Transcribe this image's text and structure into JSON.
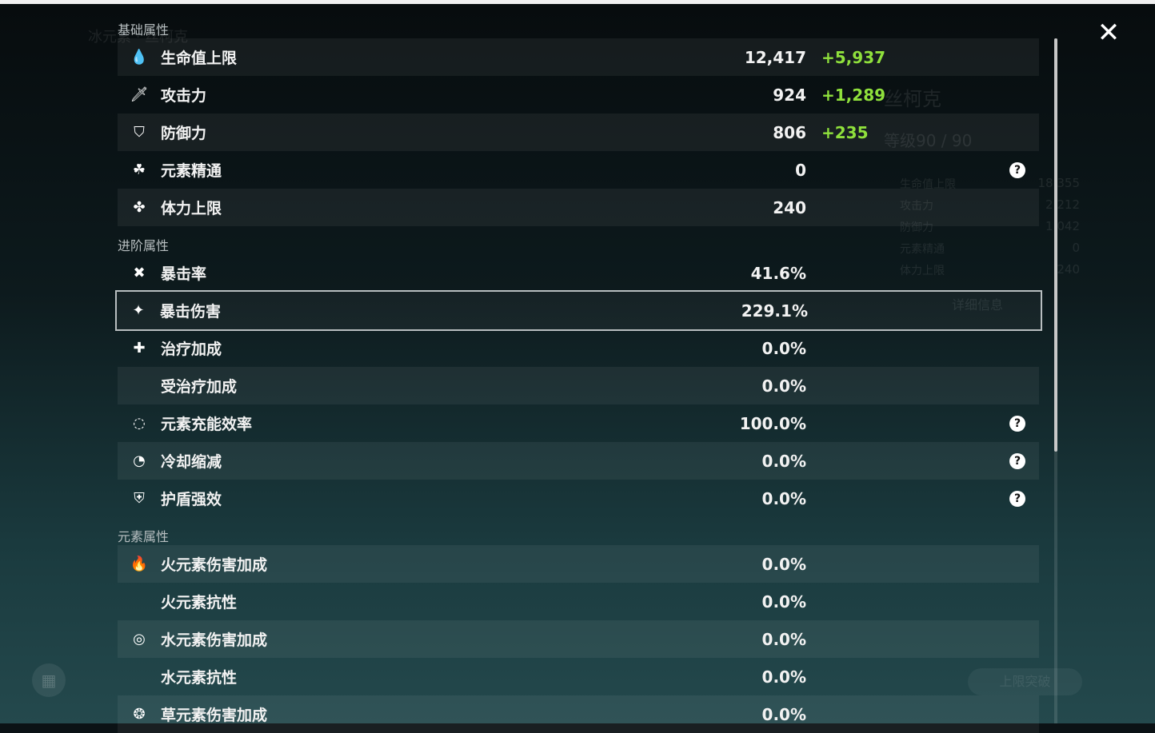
{
  "background": {
    "element_name": "冰元素 · 丝柯克",
    "char_name": "丝柯克",
    "level": "等级90 / 90",
    "detail_button": "详细信息",
    "ascend_button": "上限突破",
    "summary": [
      {
        "label": "生命值上限",
        "value": "18,355"
      },
      {
        "label": "攻击力",
        "value": "2,212"
      },
      {
        "label": "防御力",
        "value": "1,042"
      },
      {
        "label": "元素精通",
        "value": "0"
      },
      {
        "label": "体力上限",
        "value": "240"
      }
    ]
  },
  "close_label": "✕",
  "sections": [
    {
      "title": "基础属性",
      "rows": [
        {
          "icon": "hp-drop-icon",
          "glyph": "💧",
          "label": "生命值上限",
          "value": "12,417",
          "bonus": "+5,937"
        },
        {
          "icon": "sword-icon",
          "glyph": "🗡",
          "label": "攻击力",
          "value": "924",
          "bonus": "+1,289"
        },
        {
          "icon": "shield-icon",
          "glyph": "⛉",
          "label": "防御力",
          "value": "806",
          "bonus": "+235"
        },
        {
          "icon": "elemental-mastery-icon",
          "glyph": "☘",
          "label": "元素精通",
          "value": "0",
          "help": true
        },
        {
          "icon": "stamina-icon",
          "glyph": "✤",
          "label": "体力上限",
          "value": "240"
        }
      ]
    },
    {
      "title": "进阶属性",
      "rows": [
        {
          "icon": "crit-rate-icon",
          "glyph": "✖",
          "label": "暴击率",
          "value": "41.6%"
        },
        {
          "icon": "crit-dmg-icon",
          "glyph": "✦",
          "label": "暴击伤害",
          "value": "229.1%",
          "selected": true
        },
        {
          "icon": "healing-icon",
          "glyph": "✚",
          "label": "治疗加成",
          "value": "0.0%"
        },
        {
          "icon": "",
          "glyph": "",
          "label": "受治疗加成",
          "value": "0.0%"
        },
        {
          "icon": "energy-recharge-icon",
          "glyph": "◌",
          "label": "元素充能效率",
          "value": "100.0%",
          "help": true
        },
        {
          "icon": "cooldown-icon",
          "glyph": "◔",
          "label": "冷却缩减",
          "value": "0.0%",
          "help": true
        },
        {
          "icon": "shield-strength-icon",
          "glyph": "⛨",
          "label": "护盾强效",
          "value": "0.0%",
          "help": true
        }
      ]
    },
    {
      "title": "元素属性",
      "rows": [
        {
          "icon": "pyro-icon",
          "glyph": "🔥",
          "label": "火元素伤害加成",
          "value": "0.0%"
        },
        {
          "icon": "",
          "glyph": "",
          "label": "火元素抗性",
          "value": "0.0%"
        },
        {
          "icon": "hydro-icon",
          "glyph": "◎",
          "label": "水元素伤害加成",
          "value": "0.0%"
        },
        {
          "icon": "",
          "glyph": "",
          "label": "水元素抗性",
          "value": "0.0%"
        },
        {
          "icon": "dendro-icon",
          "glyph": "❂",
          "label": "草元素伤害加成",
          "value": "0.0%"
        }
      ]
    }
  ],
  "colors": {
    "bonus": "#8fe03c",
    "selected_outline": "#b8bec0"
  }
}
